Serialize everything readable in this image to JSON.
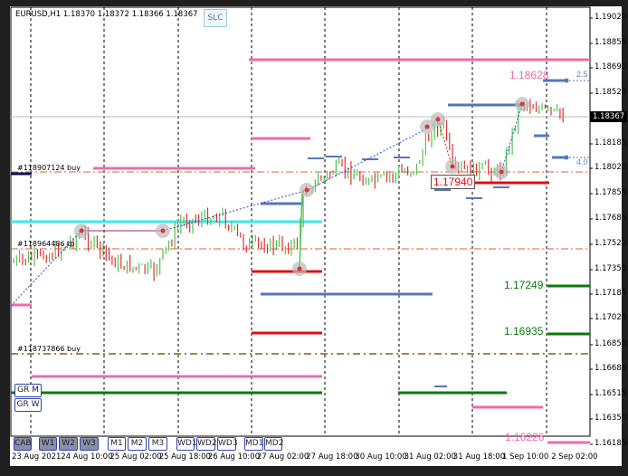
{
  "header": {
    "symbol_info": "EURUSD,H1  1.18370 1.18372 1.18366 1.18367",
    "slc_label": "SLC"
  },
  "colors": {
    "bull": "#55c055",
    "bear": "#e03030",
    "pink": "#f06aa8",
    "cyan": "#40e8e8",
    "blue": "#5577bb",
    "red": "#e01010",
    "green": "#0a7a0a"
  },
  "current_price": "1.18367",
  "y_axis": [
    "1.19020",
    "1.18855",
    "1.18690",
    "1.18520",
    "1.18185",
    "1.18020",
    "1.17855",
    "1.17685",
    "1.17520",
    "1.17350",
    "1.17185",
    "1.17020",
    "1.16850",
    "1.16685",
    "1.16515",
    "1.16350",
    "1.16185"
  ],
  "x_axis": [
    "23 Aug 2021",
    "24 Aug 10:00",
    "25 Aug 02:00",
    "25 Aug 18:00",
    "26 Aug 10:00",
    "27 Aug 02:00",
    "27 Aug 18:00",
    "30 Aug 10:00",
    "31 Aug 02:00",
    "31 Aug 18:00",
    "1 Sep 10:00",
    "2 Sep 02:00"
  ],
  "order_labels": {
    "buy1": "#118907124 buy",
    "tp": "#118964486 tp",
    "buy2": "#118737866 buy"
  },
  "price_labels": {
    "p1": "1.18628",
    "p2": "1.17940",
    "p3": "1.17249",
    "p4": "1.16935",
    "p5": "1.16226",
    "r1": "2.5",
    "r2": "4.0"
  },
  "side_buttons": [
    "GR M",
    "GR W"
  ],
  "bottom_buttons": [
    "CAB",
    "W1",
    "W2",
    "W3",
    "M1",
    "M2",
    "M3",
    "WD1",
    "WD2",
    "WD3",
    "MD1",
    "MD2"
  ]
}
